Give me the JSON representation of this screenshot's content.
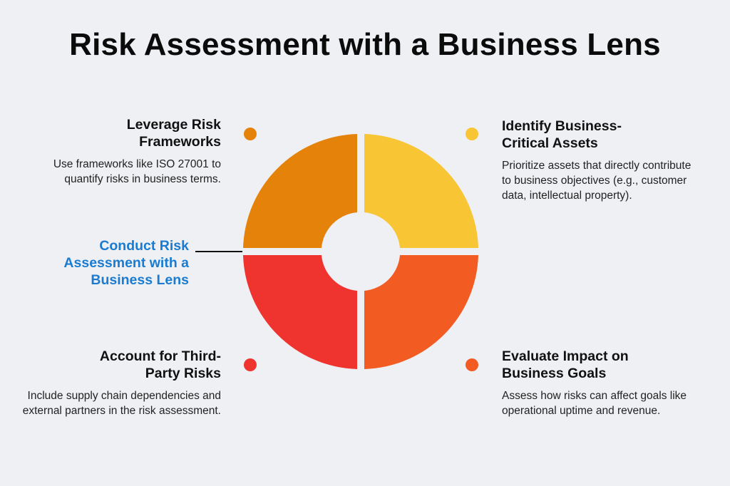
{
  "title": "Risk Assessment with a Business Lens",
  "center": {
    "label": "Conduct Risk Assessment with a Business Lens",
    "color": "#1a7bd0"
  },
  "quadrants": [
    {
      "id": "top-left",
      "heading": "Leverage Risk Frameworks",
      "description": "Use frameworks like ISO 27001 to quantify risks in business terms.",
      "color": "#e5820a"
    },
    {
      "id": "top-right",
      "heading": "Identify Business-Critical Assets",
      "description": "Prioritize assets that directly contribute to business objectives (e.g., customer data, intellectual property).",
      "color": "#f8c535"
    },
    {
      "id": "bottom-right",
      "heading": "Evaluate Impact on Business Goals",
      "description": "Assess how risks can affect goals like operational uptime and revenue.",
      "color": "#f25b22"
    },
    {
      "id": "bottom-left",
      "heading": "Account for Third-Party Risks",
      "description": "Include supply chain dependencies and external partners in the risk assessment.",
      "color": "#ef3430"
    }
  ]
}
